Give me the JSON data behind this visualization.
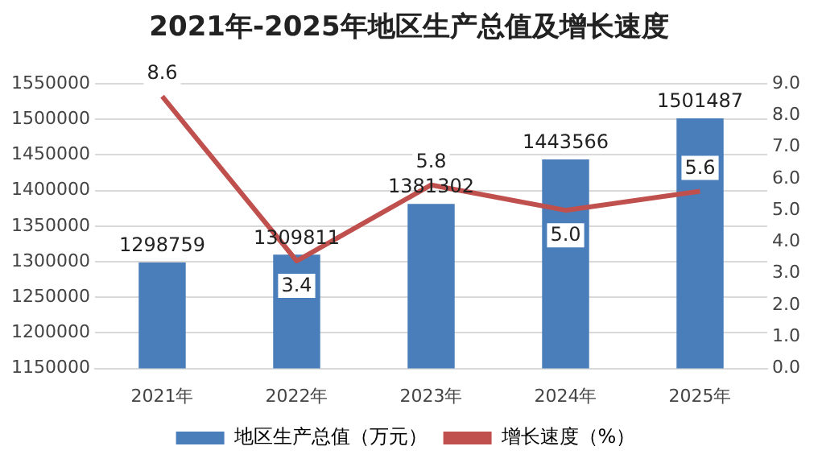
{
  "chart_data": {
    "type": "bar",
    "title": "2021年-2025年地区生产总值及增长速度",
    "categories": [
      "2021年",
      "2022年",
      "2023年",
      "2024年",
      "2025年"
    ],
    "series": [
      {
        "name": "地区生产总值（万元）",
        "color": "#4a7ebb",
        "values": [
          1298759,
          1309811,
          1381302,
          1443566,
          1501487
        ]
      },
      {
        "name": "增长速度（%）",
        "type": "line",
        "axis": "y2",
        "color": "#c0504d",
        "values": [
          8.6,
          3.4,
          5.8,
          5.0,
          5.6
        ],
        "value_labels": [
          "8.6",
          "3.4",
          "5.8",
          "5.0",
          "5.6"
        ]
      }
    ],
    "data_labels": true,
    "ylim": [
      1150000,
      1550000
    ],
    "yticks": [
      1150000,
      1200000,
      1250000,
      1300000,
      1350000,
      1400000,
      1450000,
      1500000,
      1550000
    ],
    "y2lim": [
      0,
      9
    ],
    "y2ticks": [
      {
        "value": 0,
        "label": "0.0"
      },
      {
        "value": 1,
        "label": "1.0"
      },
      {
        "value": 2,
        "label": "2.0"
      },
      {
        "value": 3,
        "label": "3.0"
      },
      {
        "value": 4,
        "label": "4.0"
      },
      {
        "value": 5,
        "label": "5.0"
      },
      {
        "value": 6,
        "label": "6.0"
      },
      {
        "value": 7,
        "label": "7.0"
      },
      {
        "value": 8,
        "label": "8.0"
      },
      {
        "value": 9,
        "label": "9.0"
      }
    ],
    "grid": "y",
    "legend": "bottom",
    "marker": "none",
    "line_style": "solid"
  }
}
